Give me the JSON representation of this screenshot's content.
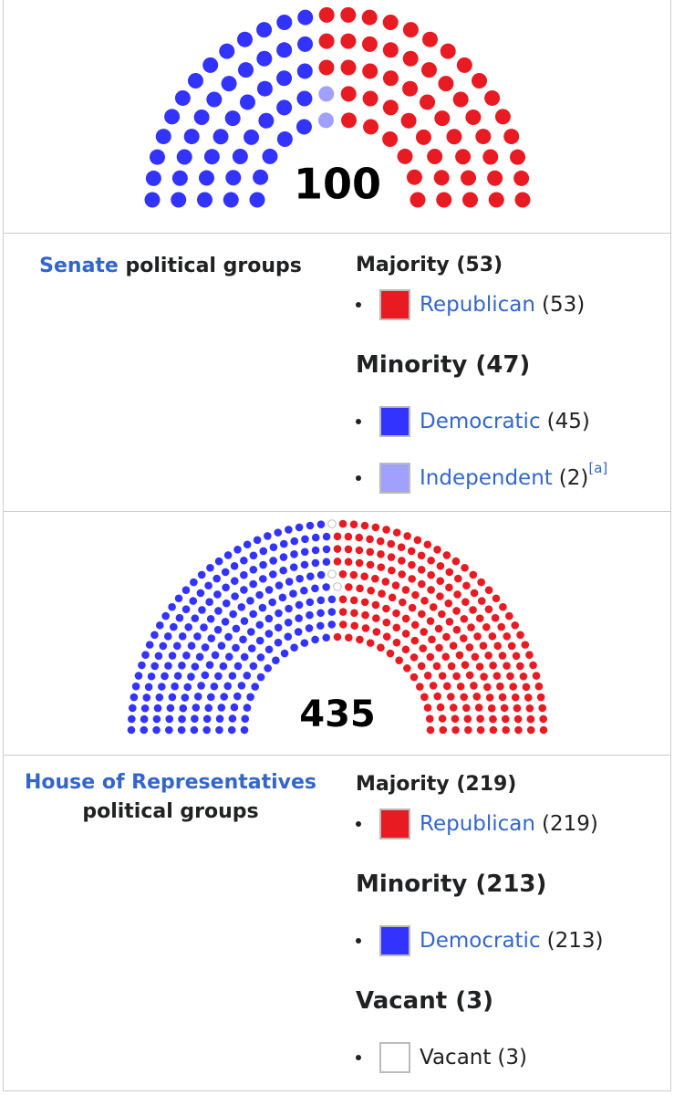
{
  "senate": {
    "total": 100,
    "label": {
      "link": "Senate",
      "text": "political groups"
    },
    "groups": [
      {
        "heading": "Majority",
        "seats": {
          "value": 53,
          "label": "(53)"
        },
        "members": [
          {
            "name": "Republican",
            "seats": {
              "value": 53,
              "label": "(53)"
            },
            "color": "#e81b23"
          }
        ]
      },
      {
        "heading": "Minority",
        "seats": {
          "value": 47,
          "label": "(47)"
        },
        "members": [
          {
            "name": "Democratic",
            "seats": {
              "value": 45,
              "label": "(45)"
            },
            "color": "#3333ff"
          },
          {
            "name": "Independent",
            "seats": {
              "value": 2,
              "label": "(2)"
            },
            "color": "#a0a0ff",
            "note": "[a]"
          }
        ]
      }
    ]
  },
  "house": {
    "total": 435,
    "label": {
      "link": "House of Representatives",
      "text": "political groups"
    },
    "groups": [
      {
        "heading": "Majority",
        "seats": {
          "value": 219,
          "label": "(219)"
        },
        "members": [
          {
            "name": "Republican",
            "seats": {
              "value": 219,
              "label": "(219)"
            },
            "color": "#e81b23"
          }
        ]
      },
      {
        "heading": "Minority",
        "seats": {
          "value": 213,
          "label": "(213)"
        },
        "members": [
          {
            "name": "Democratic",
            "seats": {
              "value": 213,
              "label": "(213)"
            },
            "color": "#3333ff"
          }
        ]
      },
      {
        "heading": "Vacant",
        "seats": {
          "value": 3,
          "label": "(3)"
        },
        "members": [
          {
            "name": "Vacant",
            "seats": {
              "value": 3,
              "label": "(3)"
            },
            "color": "#ffffff"
          }
        ]
      }
    ]
  }
}
